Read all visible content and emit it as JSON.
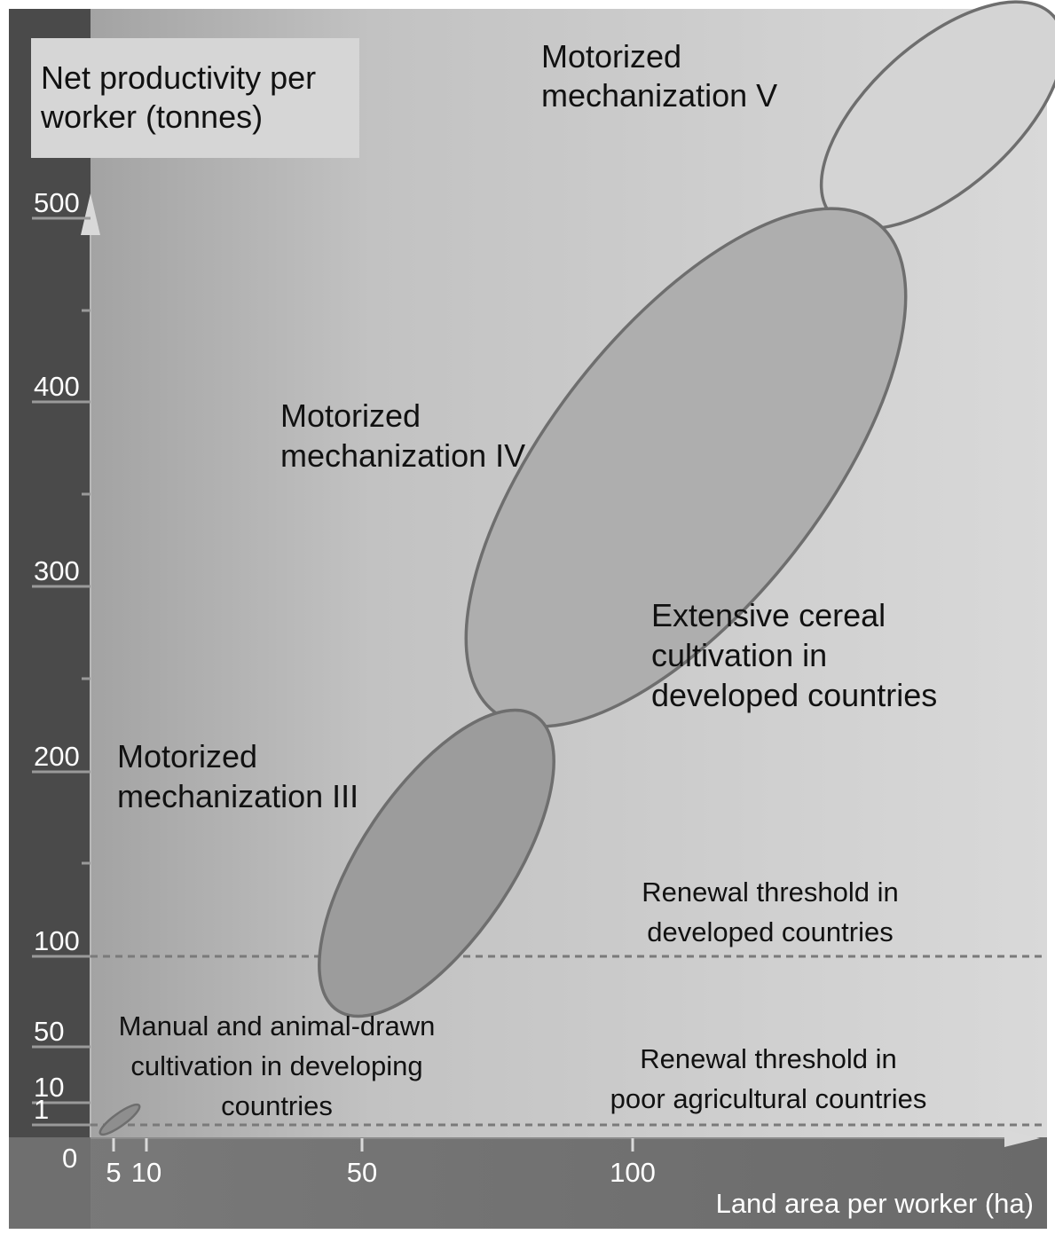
{
  "chart_data": {
    "type": "scatter",
    "ylabel": "Net productivity per worker (tonnes)",
    "xlabel": "Land area per worker (ha)",
    "y_ticks": [
      "500",
      "400",
      "300",
      "200",
      "100",
      "50",
      "10",
      "1",
      "0"
    ],
    "x_ticks": [
      "5",
      "10",
      "50",
      "100"
    ],
    "ellipse_labels": {
      "manual": "Manual and animal-drawn cultivation in developing countries",
      "mech3": "Motorized mechanization III",
      "mech4": "Motorized mechanization IV",
      "mech5": "Motorized mechanization V",
      "extensive": "Extensive cereal cultivation in developed countries"
    },
    "thresholds": [
      {
        "label": "Renewal threshold in developed countries",
        "y": 100
      },
      {
        "label": "Renewal threshold in poor agricultural countries",
        "y": 1
      }
    ],
    "colors": {
      "axis_band": "#4a4a4a",
      "ellipse_stroke": "#6e6e6e",
      "mech3_fill": "#9c9c9c",
      "mech4_fill": "#aeaeae",
      "mech5_fill": "#d4d4d4",
      "threshold_line": "#7a7a7a"
    }
  },
  "labels": {
    "ylabel_line1": "Net productivity per",
    "ylabel_line2": "worker (tonnes)",
    "mech5_line1": "Motorized",
    "mech5_line2": "mechanization V",
    "mech4_line1": "Motorized",
    "mech4_line2": "mechanization IV",
    "mech3_line1": "Motorized",
    "mech3_line2": "mechanization III",
    "extensive_line1": "Extensive cereal",
    "extensive_line2": "cultivation in",
    "extensive_line3": "developed countries",
    "renew_dev_line1": "Renewal threshold in",
    "renew_dev_line2": "developed countries",
    "renew_poor_line1": "Renewal threshold in",
    "renew_poor_line2": "poor agricultural countries",
    "manual_line1": "Manual and animal-drawn",
    "manual_line2": "cultivation in developing",
    "manual_line3": "countries",
    "xlabel": "Land area per worker (ha)"
  }
}
